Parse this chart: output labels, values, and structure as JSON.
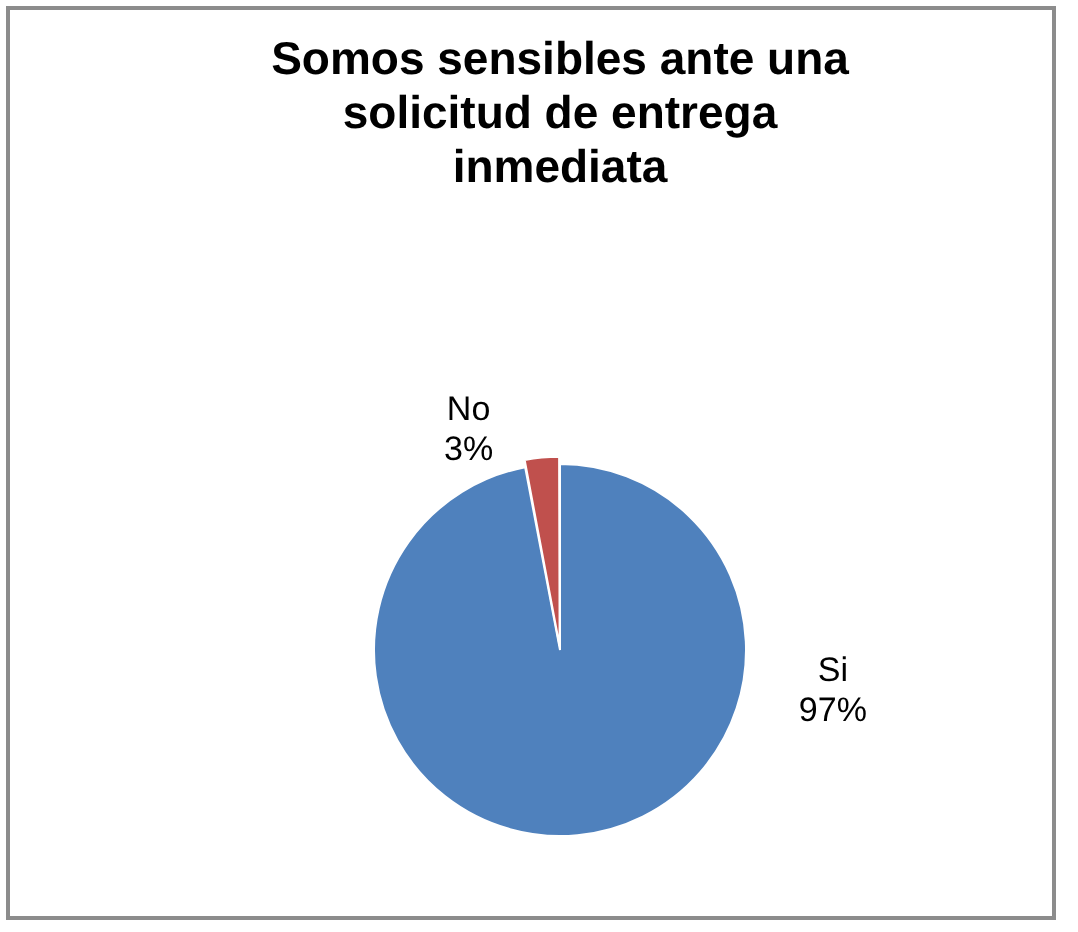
{
  "chart_data": {
    "type": "pie",
    "title": "Somos sensibles ante una solicitud de entrega inmediata",
    "categories": [
      "Si",
      "No"
    ],
    "values": [
      97,
      3
    ],
    "colors": [
      "#4f81bd",
      "#c0504d"
    ],
    "value_labels": [
      "97%",
      "3%"
    ],
    "legend": false
  }
}
